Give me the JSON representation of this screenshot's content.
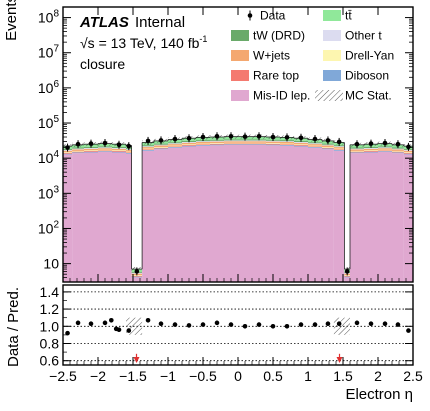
{
  "chart_data": {
    "type": "stacked-histogram-with-ratio",
    "experiment": "ATLAS",
    "status": "Internal",
    "energy_label_pre": "√s = 13 TeV, 140 fb",
    "energy_label_sup": "-1",
    "region": "closure",
    "xlabel": "Electron η",
    "ylabel": "Events",
    "ratio_ylabel": "Data / Pred.",
    "xlim": [
      -2.5,
      2.5
    ],
    "ylim_log": [
      3,
      200000000
    ],
    "ratio_ylim": [
      0.55,
      1.48
    ],
    "y_log_scale": true,
    "bin_edges": [
      -2.5,
      -2.37,
      -2.2,
      -2.0,
      -1.8,
      -1.6,
      -1.52,
      -1.37,
      -1.2,
      -1.0,
      -0.8,
      -0.6,
      -0.4,
      -0.2,
      0.0,
      0.2,
      0.4,
      0.6,
      0.8,
      1.0,
      1.2,
      1.37,
      1.52,
      1.6,
      1.8,
      2.0,
      2.2,
      2.37,
      2.5
    ],
    "x_ticks": [
      -2.5,
      -2,
      -1.5,
      -1,
      -0.5,
      0,
      0.5,
      1,
      1.5,
      2,
      2.5
    ],
    "x_tick_labels": [
      "−2.5",
      "−2",
      "−1.5",
      "−1",
      "−0.5",
      "0",
      "0.5",
      "1",
      "1.5",
      "2",
      "2.5"
    ],
    "y_ticks": [
      10,
      100,
      1000,
      10000,
      100000,
      1000000,
      10000000,
      100000000
    ],
    "y_tick_labels": [
      {
        "base": "10",
        "exp": ""
      },
      {
        "base": "10",
        "exp": "2"
      },
      {
        "base": "10",
        "exp": "3"
      },
      {
        "base": "10",
        "exp": "4"
      },
      {
        "base": "10",
        "exp": "5"
      },
      {
        "base": "10",
        "exp": "6"
      },
      {
        "base": "10",
        "exp": "7"
      },
      {
        "base": "10",
        "exp": "8"
      }
    ],
    "ratio_ticks": [
      0.6,
      0.8,
      1.0,
      1.2,
      1.4
    ],
    "ratio_tick_labels": [
      "0.6",
      "0.8",
      "1.0",
      "1.2",
      "1.4"
    ],
    "totals": [
      22000,
      24000,
      25000,
      26000,
      25000,
      23000,
      7,
      28000,
      31000,
      34000,
      37000,
      39000,
      40000,
      41000,
      41000,
      41000,
      40000,
      39000,
      37000,
      34000,
      31000,
      28000,
      7,
      24000,
      25000,
      26000,
      24000,
      22000
    ],
    "data": [
      20000,
      25000,
      26000,
      27000,
      24000,
      22000,
      6,
      31000,
      32000,
      35000,
      37000,
      40000,
      42000,
      42000,
      41000,
      42000,
      40000,
      39000,
      38000,
      35000,
      32000,
      29000,
      6,
      25000,
      26000,
      27000,
      25000,
      21000
    ],
    "ratio": [
      0.92,
      1.04,
      1.03,
      1.04,
      0.96,
      0.95,
      null,
      1.07,
      1.03,
      1.02,
      1.01,
      1.02,
      1.04,
      1.02,
      1.0,
      1.02,
      1.0,
      1.0,
      1.02,
      1.02,
      1.03,
      1.03,
      null,
      1.04,
      1.03,
      1.03,
      1.02,
      0.95
    ],
    "ratio_extra_points": [
      {
        "x": -1.81,
        "y": 1.07
      },
      {
        "x": -1.74,
        "y": 0.97
      }
    ],
    "ratio_hatch_bins": [
      [
        -1.6,
        -1.37
      ],
      [
        1.37,
        1.6
      ]
    ],
    "ratio_arrows_x": [
      -1.45,
      1.45
    ],
    "stack_fractions_order": [
      "Mis-ID lep.",
      "Diboson",
      "Rare top",
      "Drell-Yan",
      "W+jets",
      "Other t",
      "tW (DRD)",
      "tt̄"
    ],
    "stack_fractions": [
      0.58,
      0.03,
      0.03,
      0.03,
      0.07,
      0.04,
      0.06,
      0.16
    ],
    "series": [
      {
        "name": "tt̄",
        "color": "#90e89a"
      },
      {
        "name": "tW (DRD)",
        "color": "#6aaa6a"
      },
      {
        "name": "Other t",
        "color": "#dcdcf0"
      },
      {
        "name": "W+jets",
        "color": "#f4a870"
      },
      {
        "name": "Drell-Yan",
        "color": "#fdf6b0"
      },
      {
        "name": "Rare top",
        "color": "#f47a70"
      },
      {
        "name": "Diboson",
        "color": "#80a8d8"
      },
      {
        "name": "Mis-ID lep.",
        "color": "#e0a8d0"
      }
    ],
    "legend": {
      "data_label": "Data",
      "mcstat_label": "MC Stat.",
      "placement": "top-right"
    }
  }
}
